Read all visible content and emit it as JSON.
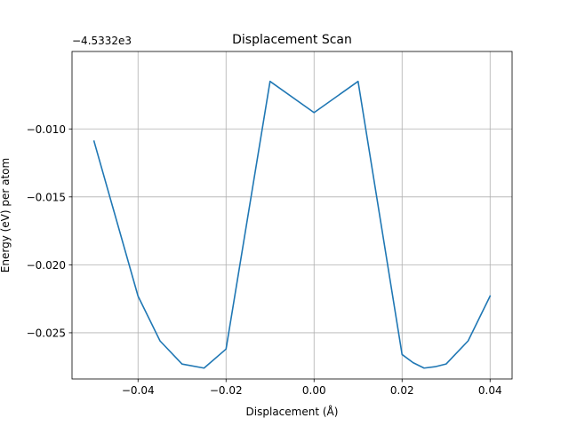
{
  "chart_data": {
    "type": "line",
    "title": "Displacement Scan",
    "xlabel": "Displacement (Å)",
    "ylabel": "Energy (eV) per atom",
    "y_offset_label": "−4.5332e3",
    "xlim": [
      -0.055,
      0.045
    ],
    "ylim": [
      -0.0284,
      -0.0043
    ],
    "grid": true,
    "x_ticks": [
      -0.04,
      -0.02,
      0.0,
      0.02,
      0.04
    ],
    "x_tick_labels": [
      "−0.04",
      "−0.02",
      "0.00",
      "0.02",
      "0.04"
    ],
    "y_ticks": [
      -0.025,
      -0.02,
      -0.015,
      -0.01
    ],
    "y_tick_labels": [
      "−0.025",
      "−0.020",
      "−0.015",
      "−0.010"
    ],
    "series": [
      {
        "color": "#1f77b4",
        "x": [
          -0.05,
          -0.04,
          -0.035,
          -0.03,
          -0.025,
          -0.02,
          -0.01,
          0.0,
          0.01,
          0.02,
          0.0225,
          0.025,
          0.0275,
          0.03,
          0.035,
          0.04
        ],
        "y": [
          -0.0109,
          -0.0223,
          -0.0256,
          -0.0273,
          -0.0276,
          -0.0262,
          -0.0065,
          -0.0088,
          -0.0065,
          -0.0266,
          -0.0272,
          -0.0276,
          -0.0275,
          -0.0273,
          -0.0256,
          -0.0223
        ]
      }
    ]
  }
}
